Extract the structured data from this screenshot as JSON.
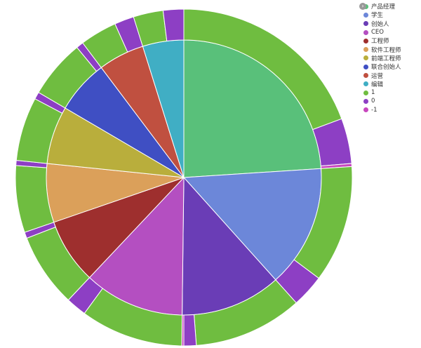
{
  "chart_data": {
    "type": "pie",
    "title": "",
    "inner": {
      "categories": [
        "产品经理",
        "学生",
        "创始人",
        "CEO",
        "工程师",
        "软件工程师",
        "前端工程师",
        "联合创始人",
        "运营",
        "编辑"
      ],
      "values": [
        24.3,
        14.6,
        12.0,
        12.0,
        7.8,
        7.0,
        6.9,
        6.4,
        5.5,
        4.9
      ],
      "colors": [
        "#59c07a",
        "#6c87d9",
        "#6a3db6",
        "#b44fc1",
        "#9e2f2e",
        "#dba05a",
        "#b9ae3c",
        "#3f4fc3",
        "#c05040",
        "#40aec4"
      ]
    },
    "outer": {
      "categories": [
        "1",
        "0",
        "-1"
      ],
      "series": [
        {
          "name": "产品经理",
          "values": [
            19.6,
            4.4,
            0.3
          ]
        },
        {
          "name": "学生",
          "values": [
            11.4,
            3.2,
            0.0
          ]
        },
        {
          "name": "创始人",
          "values": [
            10.6,
            1.2,
            0.2
          ]
        },
        {
          "name": "CEO",
          "values": [
            10.0,
            2.0,
            0.0
          ]
        },
        {
          "name": "工程师",
          "values": [
            7.2,
            0.6,
            0.0
          ]
        },
        {
          "name": "软件工程师",
          "values": [
            6.5,
            0.5,
            0.0
          ]
        },
        {
          "name": "前端工程师",
          "values": [
            6.2,
            0.7,
            0.0
          ]
        },
        {
          "name": "联合创始人",
          "values": [
            5.7,
            0.7,
            0.0
          ]
        },
        {
          "name": "运营",
          "values": [
            3.6,
            1.9,
            0.0
          ]
        },
        {
          "name": "编辑",
          "values": [
            2.9,
            2.0,
            0.0
          ]
        }
      ],
      "colors": [
        "#6fbd40",
        "#8d3fc4",
        "#c847be"
      ]
    }
  },
  "legend": {
    "items": [
      {
        "label": "产品经理",
        "color": "#59c07a"
      },
      {
        "label": "学生",
        "color": "#6c87d9"
      },
      {
        "label": "创始人",
        "color": "#6a3db6"
      },
      {
        "label": "CEO",
        "color": "#b44fc1"
      },
      {
        "label": "工程师",
        "color": "#9e2f2e"
      },
      {
        "label": "软件工程师",
        "color": "#dba05a"
      },
      {
        "label": "前端工程师",
        "color": "#b9ae3c"
      },
      {
        "label": "联合创始人",
        "color": "#3f4fc3"
      },
      {
        "label": "运营",
        "color": "#c05040"
      },
      {
        "label": "编辑",
        "color": "#40aec4"
      },
      {
        "label": "1",
        "color": "#6fbd40"
      },
      {
        "label": "0",
        "color": "#8d3fc4"
      },
      {
        "label": "-1",
        "color": "#c847be"
      }
    ]
  }
}
